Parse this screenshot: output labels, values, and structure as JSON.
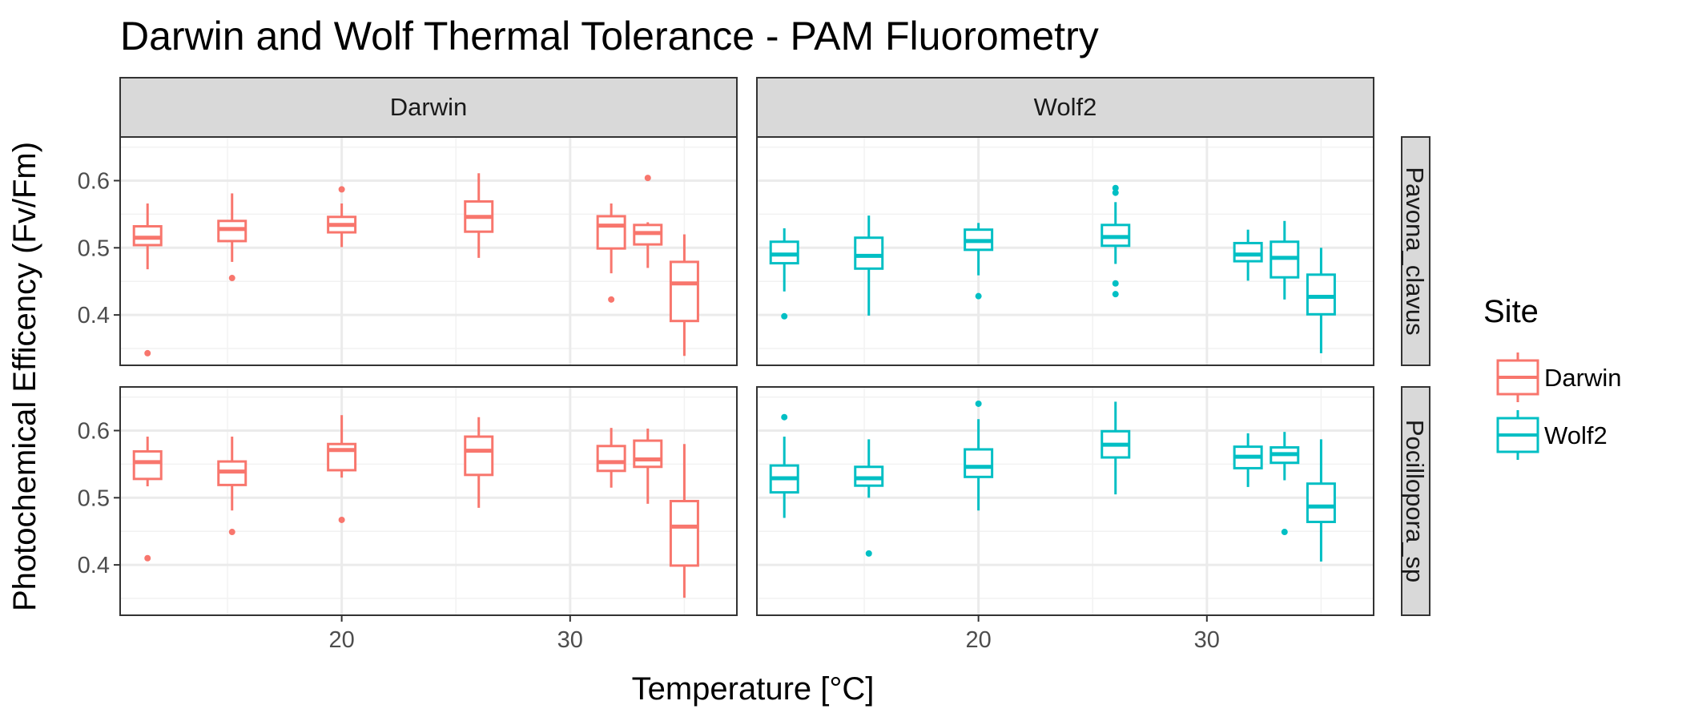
{
  "chart_data": {
    "type": "boxplot",
    "title": "Darwin and Wolf Thermal Tolerance - PAM Fluorometry",
    "xlabel": "Temperature [°C]",
    "ylabel": "Photochemical Efficency (Fv/Fm)",
    "xlim": [
      10.3,
      37.3
    ],
    "ylim": [
      0.325,
      0.665
    ],
    "x_ticks": [
      20,
      30
    ],
    "y_ticks": [
      0.4,
      0.5,
      0.6
    ],
    "grid": true,
    "col_facets": [
      "Darwin",
      "Wolf2"
    ],
    "row_facets": [
      "Pavona_clavus",
      "Pocillopora_sp"
    ],
    "legend": {
      "title": "Site",
      "position": "right",
      "entries": [
        {
          "label": "Darwin",
          "color": "#F8766D"
        },
        {
          "label": "Wolf2",
          "color": "#00BFC4"
        }
      ]
    },
    "series": [
      {
        "name": "Darwin",
        "color": "#F8766D",
        "panels": [
          {
            "site": "Darwin",
            "species": "Pavona_clavus",
            "boxes": [
              {
                "x": 11.5,
                "low": 0.468,
                "q1": 0.504,
                "median": 0.515,
                "q3": 0.532,
                "high": 0.566,
                "outliers": [
                  0.343
                ]
              },
              {
                "x": 15.2,
                "low": 0.479,
                "q1": 0.51,
                "median": 0.528,
                "q3": 0.54,
                "high": 0.581,
                "outliers": [
                  0.455
                ]
              },
              {
                "x": 20.0,
                "low": 0.501,
                "q1": 0.523,
                "median": 0.534,
                "q3": 0.546,
                "high": 0.566,
                "outliers": [
                  0.587
                ]
              },
              {
                "x": 26.0,
                "low": 0.485,
                "q1": 0.524,
                "median": 0.546,
                "q3": 0.569,
                "high": 0.611,
                "outliers": []
              },
              {
                "x": 31.8,
                "low": 0.462,
                "q1": 0.499,
                "median": 0.533,
                "q3": 0.547,
                "high": 0.566,
                "outliers": [
                  0.423
                ]
              },
              {
                "x": 33.4,
                "low": 0.47,
                "q1": 0.505,
                "median": 0.522,
                "q3": 0.534,
                "high": 0.538,
                "outliers": [
                  0.604
                ]
              },
              {
                "x": 35.0,
                "low": 0.339,
                "q1": 0.391,
                "median": 0.447,
                "q3": 0.479,
                "high": 0.52,
                "outliers": []
              }
            ]
          },
          {
            "site": "Darwin",
            "species": "Pocillopora_sp",
            "boxes": [
              {
                "x": 11.5,
                "low": 0.517,
                "q1": 0.528,
                "median": 0.553,
                "q3": 0.569,
                "high": 0.591,
                "outliers": [
                  0.41
                ]
              },
              {
                "x": 15.2,
                "low": 0.481,
                "q1": 0.519,
                "median": 0.539,
                "q3": 0.554,
                "high": 0.591,
                "outliers": [
                  0.449
                ]
              },
              {
                "x": 20.0,
                "low": 0.53,
                "q1": 0.541,
                "median": 0.571,
                "q3": 0.58,
                "high": 0.623,
                "outliers": [
                  0.467
                ]
              },
              {
                "x": 26.0,
                "low": 0.485,
                "q1": 0.534,
                "median": 0.57,
                "q3": 0.591,
                "high": 0.62,
                "outliers": []
              },
              {
                "x": 31.8,
                "low": 0.515,
                "q1": 0.54,
                "median": 0.553,
                "q3": 0.577,
                "high": 0.604,
                "outliers": []
              },
              {
                "x": 33.4,
                "low": 0.491,
                "q1": 0.546,
                "median": 0.557,
                "q3": 0.585,
                "high": 0.603,
                "outliers": []
              },
              {
                "x": 35.0,
                "low": 0.351,
                "q1": 0.399,
                "median": 0.457,
                "q3": 0.495,
                "high": 0.58,
                "outliers": []
              }
            ]
          }
        ]
      },
      {
        "name": "Wolf2",
        "color": "#00BFC4",
        "panels": [
          {
            "site": "Wolf2",
            "species": "Pavona_clavus",
            "boxes": [
              {
                "x": 11.5,
                "low": 0.435,
                "q1": 0.477,
                "median": 0.49,
                "q3": 0.509,
                "high": 0.529,
                "outliers": [
                  0.398
                ]
              },
              {
                "x": 15.2,
                "low": 0.399,
                "q1": 0.469,
                "median": 0.488,
                "q3": 0.515,
                "high": 0.548,
                "outliers": []
              },
              {
                "x": 20.0,
                "low": 0.459,
                "q1": 0.497,
                "median": 0.51,
                "q3": 0.527,
                "high": 0.537,
                "outliers": [
                  0.428
                ]
              },
              {
                "x": 26.0,
                "low": 0.476,
                "q1": 0.503,
                "median": 0.516,
                "q3": 0.534,
                "high": 0.568,
                "outliers": [
                  0.589,
                  0.582,
                  0.447,
                  0.431
                ]
              },
              {
                "x": 31.8,
                "low": 0.451,
                "q1": 0.48,
                "median": 0.49,
                "q3": 0.507,
                "high": 0.527,
                "outliers": []
              },
              {
                "x": 33.4,
                "low": 0.423,
                "q1": 0.456,
                "median": 0.485,
                "q3": 0.509,
                "high": 0.54,
                "outliers": []
              },
              {
                "x": 35.0,
                "low": 0.343,
                "q1": 0.401,
                "median": 0.427,
                "q3": 0.46,
                "high": 0.5,
                "outliers": []
              }
            ]
          },
          {
            "site": "Wolf2",
            "species": "Pocillopora_sp",
            "boxes": [
              {
                "x": 11.5,
                "low": 0.47,
                "q1": 0.508,
                "median": 0.529,
                "q3": 0.548,
                "high": 0.591,
                "outliers": [
                  0.62
                ]
              },
              {
                "x": 15.2,
                "low": 0.5,
                "q1": 0.518,
                "median": 0.529,
                "q3": 0.546,
                "high": 0.587,
                "outliers": [
                  0.417
                ]
              },
              {
                "x": 20.0,
                "low": 0.481,
                "q1": 0.531,
                "median": 0.546,
                "q3": 0.572,
                "high": 0.617,
                "outliers": [
                  0.64
                ]
              },
              {
                "x": 26.0,
                "low": 0.505,
                "q1": 0.56,
                "median": 0.579,
                "q3": 0.599,
                "high": 0.643,
                "outliers": []
              },
              {
                "x": 31.8,
                "low": 0.516,
                "q1": 0.544,
                "median": 0.561,
                "q3": 0.576,
                "high": 0.596,
                "outliers": []
              },
              {
                "x": 33.4,
                "low": 0.526,
                "q1": 0.552,
                "median": 0.565,
                "q3": 0.575,
                "high": 0.598,
                "outliers": [
                  0.449
                ]
              },
              {
                "x": 35.0,
                "low": 0.405,
                "q1": 0.464,
                "median": 0.487,
                "q3": 0.521,
                "high": 0.587,
                "outliers": []
              }
            ]
          }
        ]
      }
    ]
  }
}
